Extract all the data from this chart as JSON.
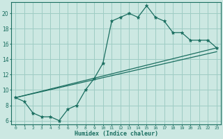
{
  "xlabel": "Humidex (Indice chaleur)",
  "xlim": [
    -0.5,
    23.5
  ],
  "ylim": [
    5.5,
    21.5
  ],
  "xticks": [
    0,
    1,
    2,
    3,
    4,
    5,
    6,
    7,
    8,
    9,
    10,
    11,
    12,
    13,
    14,
    15,
    16,
    17,
    18,
    19,
    20,
    21,
    22,
    23
  ],
  "yticks": [
    6,
    8,
    10,
    12,
    14,
    16,
    18,
    20
  ],
  "bg_color": "#cce8e2",
  "grid_color": "#9eccc4",
  "line_color": "#1a6e60",
  "line1_x": [
    0,
    1,
    2,
    3,
    4,
    5,
    6,
    7,
    8,
    9,
    10,
    11,
    12,
    13,
    14,
    15,
    16,
    17,
    18,
    19,
    20,
    21,
    22,
    23
  ],
  "line1_y": [
    9,
    8.5,
    7,
    6.5,
    6.5,
    6,
    7.5,
    8.0,
    10.0,
    11.5,
    13.5,
    19.0,
    19.5,
    20.0,
    19.5,
    21.0,
    19.5,
    19.0,
    17.5,
    17.5,
    16.5,
    16.5,
    16.5,
    15.5
  ],
  "line2_x": [
    0,
    23
  ],
  "line2_y": [
    9,
    15.0
  ],
  "line3_x": [
    0,
    23
  ],
  "line3_y": [
    9,
    15.5
  ]
}
